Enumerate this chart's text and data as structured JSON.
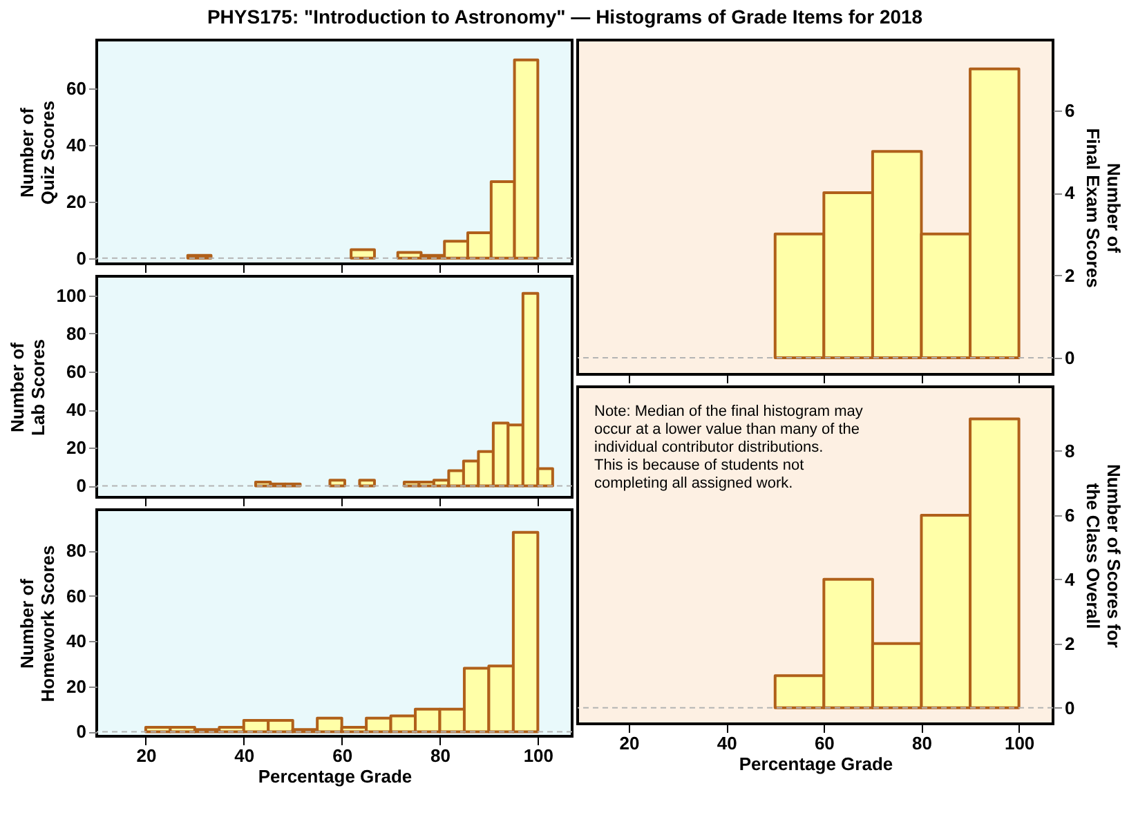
{
  "chart_data": [
    {
      "type": "histogram",
      "title": "PHYS175: \"Introduction to Astronomy\"  —  Histograms of Grade Items for 2018",
      "ylabel": "Number of\nQuiz Scores",
      "bins": [
        14.29,
        19.05,
        23.81,
        28.57,
        33.33,
        38.1,
        42.86,
        47.62,
        52.38,
        57.14,
        61.9,
        66.67,
        71.43,
        76.19,
        80.95,
        85.71,
        90.48,
        95.24,
        100,
        104.76
      ],
      "series": [
        {
          "color": "#ffffa8",
          "values": [
            0,
            0,
            0,
            1,
            0,
            0,
            0,
            0,
            0,
            0,
            3,
            0,
            2,
            1,
            6,
            9,
            27,
            70,
            0
          ]
        }
      ],
      "xlim": [
        10,
        107
      ],
      "xticks": [
        20,
        40,
        60,
        80,
        100
      ],
      "ylim": [
        -2,
        77
      ],
      "yticks": [
        0,
        20,
        40,
        60
      ],
      "tick_labels": "y",
      "ref_lines": [
        {
          "axis": "y",
          "value": 0,
          "color": "#b4b4b4",
          "line_style": "dashed"
        }
      ]
    },
    {
      "type": "histogram",
      "ylabel": "Number of\nLab Scores",
      "bins": [
        15.15,
        18.18,
        21.21,
        24.24,
        27.27,
        30.3,
        33.33,
        36.36,
        39.39,
        42.42,
        45.45,
        48.48,
        51.52,
        54.55,
        57.58,
        60.61,
        63.64,
        66.67,
        69.7,
        72.73,
        75.76,
        78.79,
        81.82,
        84.85,
        87.88,
        90.91,
        93.94,
        96.97,
        100,
        103.03
      ],
      "series": [
        {
          "color": "#ffffa8",
          "values": [
            0,
            0,
            0,
            0,
            0,
            0,
            0,
            0,
            0,
            2,
            1,
            1,
            0,
            0,
            3,
            0,
            3,
            0,
            0,
            2,
            2,
            3,
            8,
            13,
            18,
            33,
            32,
            101,
            9
          ]
        }
      ],
      "xlim": [
        10,
        107
      ],
      "xticks": [
        20,
        40,
        60,
        80,
        100
      ],
      "ylim": [
        -6,
        110
      ],
      "yticks": [
        0,
        20,
        40,
        60,
        80,
        100
      ],
      "tick_labels": "y",
      "ref_lines": [
        {
          "axis": "y",
          "value": 0,
          "color": "#b4b4b4",
          "line_style": "dashed"
        }
      ]
    },
    {
      "type": "histogram",
      "ylabel": "Number of\nHomework Scores",
      "xlabel": "Percentage Grade",
      "bins": [
        15,
        20,
        25,
        30,
        35,
        40,
        45,
        50,
        55,
        60,
        65,
        70,
        75,
        80,
        85,
        90,
        95,
        100,
        105
      ],
      "series": [
        {
          "color": "#ffffa8",
          "values": [
            0,
            2,
            2,
            1,
            2,
            5,
            5,
            1,
            6,
            2,
            6,
            7,
            10,
            10,
            28,
            29,
            88,
            0
          ]
        }
      ],
      "xlim": [
        10,
        107
      ],
      "xticks": [
        20,
        40,
        60,
        80,
        100
      ],
      "ylim": [
        -2,
        98
      ],
      "yticks": [
        0,
        20,
        40,
        60,
        80
      ],
      "ref_lines": [
        {
          "axis": "y",
          "value": 0,
          "color": "#b4b4b4",
          "line_style": "dashed"
        }
      ]
    },
    {
      "type": "histogram",
      "y2label": "Number of\nFinal Exam  Scores",
      "bins": [
        50,
        60,
        70,
        80,
        90,
        100
      ],
      "series": [
        {
          "color": "#ffffa8",
          "axis": "y2",
          "values": [
            3,
            4,
            5,
            3,
            7
          ]
        }
      ],
      "xlim": [
        9.5,
        107
      ],
      "xticks": [
        20,
        40,
        60,
        80,
        100
      ],
      "y2lim": [
        -0.4,
        7.7
      ],
      "y2ticks": [
        0,
        2,
        4,
        6
      ],
      "tick_labels": "y",
      "ref_lines": [
        {
          "axis": "y2",
          "value": 0,
          "color": "#b4b4b4",
          "line_style": "dashed"
        }
      ]
    },
    {
      "type": "histogram",
      "y2label": "Number of Scores for\nthe Class Overall",
      "xlabel": "Percentage Grade",
      "bins": [
        50,
        60,
        70,
        80,
        90,
        100
      ],
      "series": [
        {
          "color": "#ffffa8",
          "axis": "y2",
          "values": [
            1,
            4,
            2,
            6,
            9
          ]
        }
      ],
      "xlim": [
        9.5,
        107
      ],
      "xticks": [
        20,
        40,
        60,
        80,
        100
      ],
      "y2lim": [
        -0.5,
        10
      ],
      "y2ticks": [
        0,
        2,
        4,
        6,
        8
      ],
      "ref_lines": [
        {
          "axis": "y2",
          "value": 0,
          "color": "#b4b4b4",
          "line_style": "dashed"
        }
      ],
      "annotations": [
        "Note: Median of the final histogram may\noccur at a lower value than many of the\nindividual contributor distributions.\nThis is because of students not\ncompleting all assigned work."
      ]
    }
  ]
}
